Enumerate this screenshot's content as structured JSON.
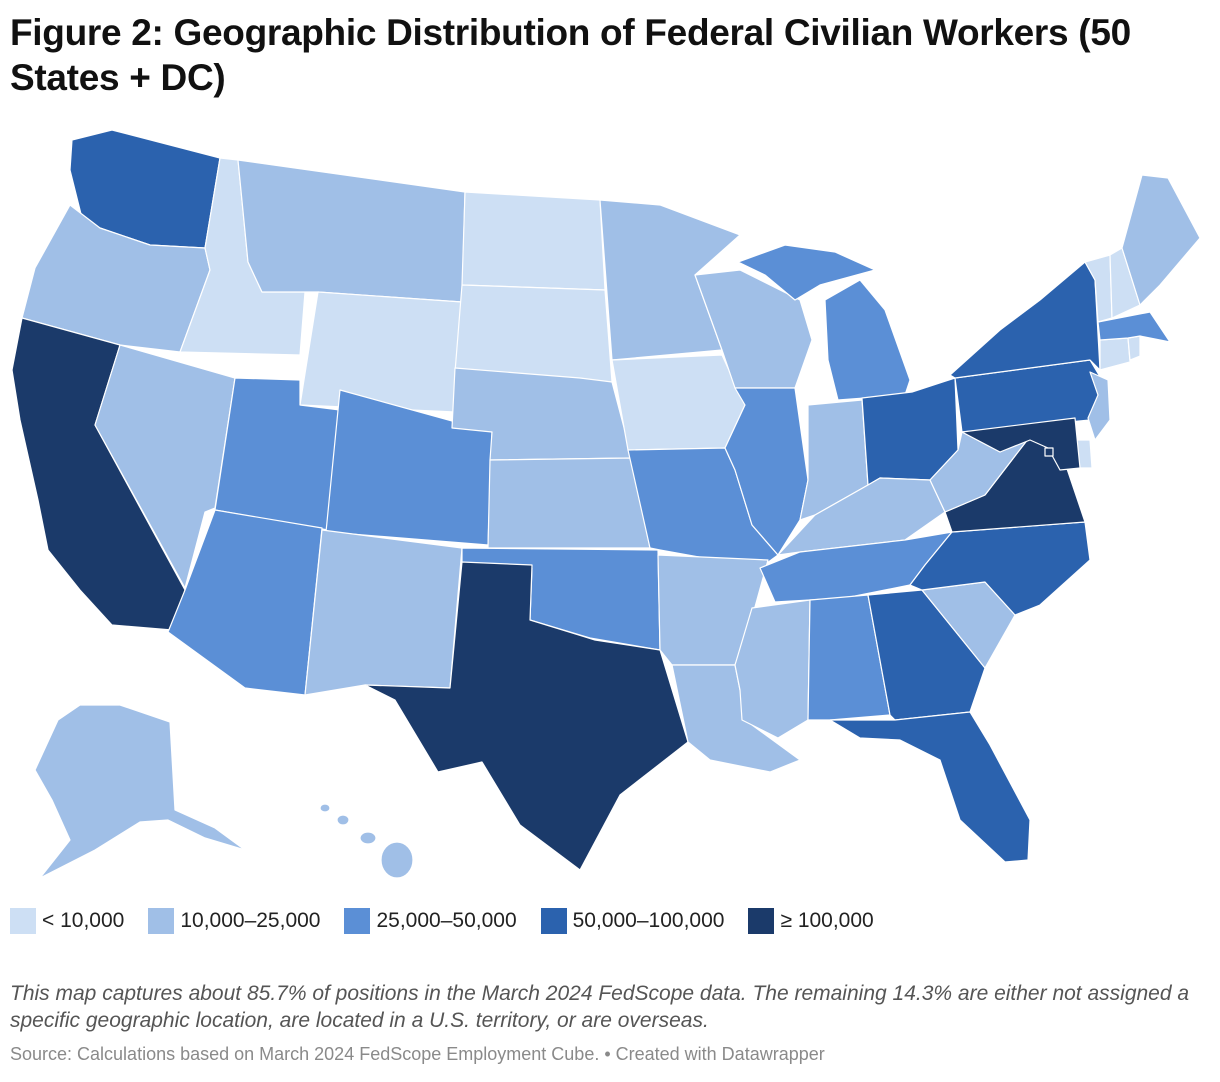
{
  "title": "Figure 2: Geographic Distribution of Federal Civilian Workers (50 States + DC)",
  "legend": [
    {
      "label": "< 10,000",
      "color": "#cddff4"
    },
    {
      "label": "10,000–25,000",
      "color": "#a0bfe7"
    },
    {
      "label": "25,000–50,000",
      "color": "#5b8fd6"
    },
    {
      "label": "50,000–100,000",
      "color": "#2b62ae"
    },
    {
      "label": "≥ 100,000",
      "color": "#1b3a6a"
    }
  ],
  "note": "This map captures about 85.7% of positions in the March 2024 FedScope data. The remaining 14.3% are either not assigned a specific geographic location, are located in a U.S. territory, or are overseas.",
  "source": "Source: Calculations based on March 2024 FedScope Employment Cube. • Created with Datawrapper",
  "states": [
    {
      "id": "WA",
      "bin": 3
    },
    {
      "id": "OR",
      "bin": 1
    },
    {
      "id": "CA",
      "bin": 4
    },
    {
      "id": "ID",
      "bin": 0
    },
    {
      "id": "NV",
      "bin": 1
    },
    {
      "id": "MT",
      "bin": 1
    },
    {
      "id": "WY",
      "bin": 0
    },
    {
      "id": "UT",
      "bin": 2
    },
    {
      "id": "AZ",
      "bin": 2
    },
    {
      "id": "CO",
      "bin": 2
    },
    {
      "id": "NM",
      "bin": 1
    },
    {
      "id": "ND",
      "bin": 0
    },
    {
      "id": "SD",
      "bin": 0
    },
    {
      "id": "NE",
      "bin": 1
    },
    {
      "id": "KS",
      "bin": 1
    },
    {
      "id": "OK",
      "bin": 2
    },
    {
      "id": "TX",
      "bin": 4
    },
    {
      "id": "MN",
      "bin": 1
    },
    {
      "id": "IA",
      "bin": 0
    },
    {
      "id": "MO",
      "bin": 2
    },
    {
      "id": "AR",
      "bin": 1
    },
    {
      "id": "LA",
      "bin": 1
    },
    {
      "id": "WI",
      "bin": 1
    },
    {
      "id": "IL",
      "bin": 2
    },
    {
      "id": "MI",
      "bin": 2
    },
    {
      "id": "IN",
      "bin": 1
    },
    {
      "id": "OH",
      "bin": 3
    },
    {
      "id": "KY",
      "bin": 1
    },
    {
      "id": "TN",
      "bin": 2
    },
    {
      "id": "MS",
      "bin": 1
    },
    {
      "id": "AL",
      "bin": 2
    },
    {
      "id": "GA",
      "bin": 3
    },
    {
      "id": "FL",
      "bin": 3
    },
    {
      "id": "SC",
      "bin": 1
    },
    {
      "id": "NC",
      "bin": 3
    },
    {
      "id": "VA",
      "bin": 4
    },
    {
      "id": "WV",
      "bin": 1
    },
    {
      "id": "PA",
      "bin": 3
    },
    {
      "id": "NY",
      "bin": 3
    },
    {
      "id": "VT",
      "bin": 0
    },
    {
      "id": "NH",
      "bin": 0
    },
    {
      "id": "ME",
      "bin": 1
    },
    {
      "id": "MA",
      "bin": 2
    },
    {
      "id": "RI",
      "bin": 0
    },
    {
      "id": "CT",
      "bin": 0
    },
    {
      "id": "NJ",
      "bin": 1
    },
    {
      "id": "DE",
      "bin": 0
    },
    {
      "id": "MD",
      "bin": 4
    },
    {
      "id": "DC",
      "bin": 4
    },
    {
      "id": "AK",
      "bin": 1
    },
    {
      "id": "HI",
      "bin": 1
    }
  ]
}
